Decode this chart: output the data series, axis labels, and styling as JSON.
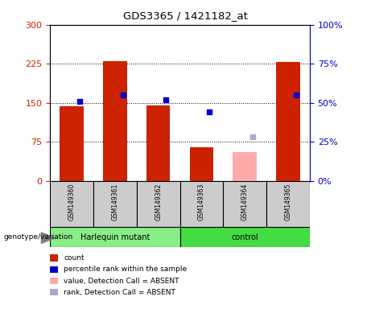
{
  "title": "GDS3365 / 1421182_at",
  "samples": [
    "GSM149360",
    "GSM149361",
    "GSM149362",
    "GSM149363",
    "GSM149364",
    "GSM149365"
  ],
  "count_values": [
    143,
    230,
    145,
    65,
    null,
    228
  ],
  "count_absent_values": [
    null,
    null,
    null,
    null,
    55,
    null
  ],
  "rank_values": [
    51,
    55,
    52,
    44,
    null,
    55
  ],
  "rank_absent_values": [
    null,
    null,
    null,
    null,
    28,
    null
  ],
  "left_yticks": [
    0,
    75,
    150,
    225,
    300
  ],
  "right_yticks": [
    0,
    25,
    50,
    75,
    100
  ],
  "left_ylim": [
    0,
    300
  ],
  "right_ylim": [
    0,
    100
  ],
  "bar_color": "#cc2200",
  "bar_absent_color": "#ffaaaa",
  "dot_color": "#0000cc",
  "dot_absent_color": "#aaaacc",
  "group_color_hq": "#88ee88",
  "group_color_ctrl": "#44dd44",
  "sample_box_color": "#cccccc",
  "label_color_left": "#cc2200",
  "label_color_right": "#0000cc",
  "bg_color": "#ffffff",
  "harlequin_label": "Harlequin mutant",
  "control_label": "control",
  "genotype_label": "genotype/variation",
  "legend_items": [
    {
      "label": "count",
      "color": "#cc2200"
    },
    {
      "label": "percentile rank within the sample",
      "color": "#0000cc"
    },
    {
      "label": "value, Detection Call = ABSENT",
      "color": "#ffaaaa"
    },
    {
      "label": "rank, Detection Call = ABSENT",
      "color": "#aaaacc"
    }
  ]
}
